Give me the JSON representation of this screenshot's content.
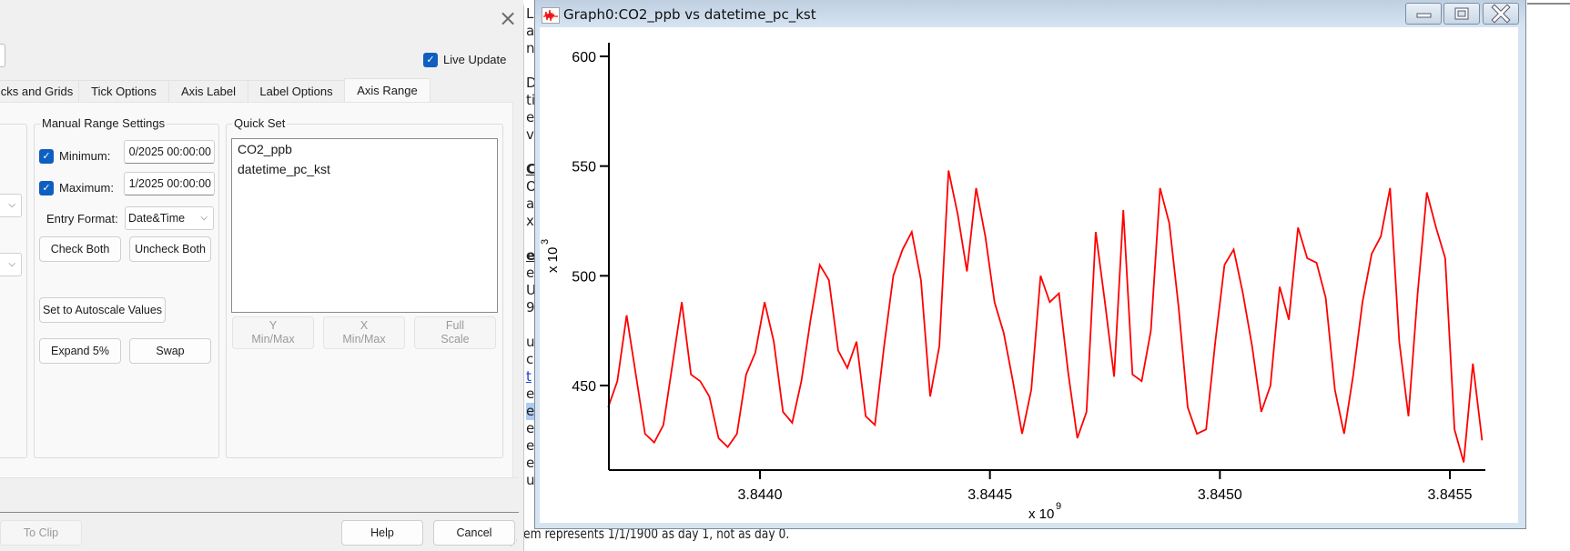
{
  "dialog": {
    "close_label": "×",
    "live_update_label": "Live Update",
    "live_update_checked": true,
    "tabs": [
      {
        "label": "cks and Grids",
        "active": false
      },
      {
        "label": "Tick Options",
        "active": false
      },
      {
        "label": "Axis Label",
        "active": false
      },
      {
        "label": "Label Options",
        "active": false
      },
      {
        "label": "Axis Range",
        "active": true
      }
    ],
    "manual_range": {
      "title": "Manual Range Settings",
      "minimum_label": "Minimum:",
      "minimum_value": "0/2025 00:00:00",
      "minimum_checked": true,
      "maximum_label": "Maximum:",
      "maximum_value": "1/2025 00:00:00",
      "maximum_checked": true,
      "entry_format_label": "Entry Format:",
      "entry_format_value": "Date&Time",
      "check_both": "Check Both",
      "uncheck_both": "Uncheck Both",
      "set_autoscale": "Set to Autoscale Values",
      "expand": "Expand 5%",
      "swap": "Swap"
    },
    "quick_set": {
      "title": "Quick Set",
      "items": [
        "CO2_ppb",
        "datetime_pc_kst"
      ],
      "y_minmax": [
        "Y",
        "Min/Max"
      ],
      "x_minmax": [
        "X",
        "Min/Max"
      ],
      "full_scale": [
        "Full",
        "Scale"
      ]
    },
    "footer": {
      "to_clip": "To Clip",
      "help": "Help",
      "cancel": "Cancel"
    }
  },
  "background_doc": {
    "letters": [
      "L",
      "a",
      "n",
      "",
      "D",
      "ti",
      "e",
      "v",
      "",
      "C",
      "O",
      "a",
      "xt",
      "",
      "e",
      "e",
      "U",
      "9",
      "",
      "u",
      "c",
      "t",
      "e",
      "e",
      "e",
      "e",
      "e",
      "u"
    ],
    "footer_text": "em represents 1/1/1900 as day 1, not as day 0."
  },
  "graph_window": {
    "title": "Graph0:CO2_ppb vs datetime_pc_kst",
    "minimize": "minimize",
    "maximize": "maximize",
    "close": "close"
  },
  "chart_data": {
    "type": "line",
    "title": "Graph0:CO2_ppb vs datetime_pc_kst",
    "xlabel": "x 10^9",
    "ylabel": "x 10^3",
    "x_multiplier_label": "x 10",
    "x_multiplier_exp": "9",
    "y_multiplier_label": "x 10",
    "y_multiplier_exp": "3",
    "series_color": "#ff0000",
    "xlim": [
      3.84367,
      3.84558
    ],
    "ylim": [
      412,
      605
    ],
    "x_ticks": [
      3.844,
      3.8445,
      3.845,
      3.8455
    ],
    "x_tick_labels": [
      "3.8440",
      "3.8445",
      "3.8450",
      "3.8455"
    ],
    "y_ticks": [
      450,
      500,
      550,
      600
    ],
    "y_tick_labels": [
      "450",
      "500",
      "550",
      "600"
    ],
    "grid": false,
    "legend": false,
    "series": [
      {
        "name": "CO2_ppb",
        "x": [
          3.84367,
          3.84369,
          3.84371,
          3.84373,
          3.84375,
          3.84377,
          3.84379,
          3.84381,
          3.84383,
          3.84385,
          3.84387,
          3.84389,
          3.84391,
          3.84393,
          3.84395,
          3.84397,
          3.84399,
          3.84401,
          3.84403,
          3.84405,
          3.84407,
          3.84409,
          3.84411,
          3.84413,
          3.84415,
          3.84417,
          3.84419,
          3.84421,
          3.84423,
          3.84425,
          3.84427,
          3.84429,
          3.84431,
          3.84433,
          3.84435,
          3.84437,
          3.84439,
          3.84441,
          3.84443,
          3.84445,
          3.84447,
          3.84449,
          3.84451,
          3.84453,
          3.84455,
          3.84457,
          3.84459,
          3.84461,
          3.84463,
          3.84465,
          3.84467,
          3.84469,
          3.84471,
          3.84473,
          3.84475,
          3.84477,
          3.84479,
          3.84481,
          3.84483,
          3.84485,
          3.84487,
          3.84489,
          3.84491,
          3.84493,
          3.84495,
          3.84497,
          3.84499,
          3.84501,
          3.84503,
          3.84505,
          3.84507,
          3.84509,
          3.84511,
          3.84513,
          3.84515,
          3.84517,
          3.84519,
          3.84521,
          3.84523,
          3.84525,
          3.84527,
          3.84529,
          3.84531,
          3.84533,
          3.84535,
          3.84537,
          3.84539,
          3.84541,
          3.84543,
          3.84545,
          3.84547,
          3.84549,
          3.84551,
          3.84553,
          3.84555,
          3.84557
        ],
        "y": [
          440,
          452,
          482,
          455,
          428,
          424,
          432,
          460,
          488,
          455,
          452,
          445,
          426,
          422,
          428,
          455,
          465,
          488,
          470,
          438,
          433,
          452,
          480,
          505,
          498,
          466,
          458,
          470,
          436,
          432,
          468,
          500,
          512,
          520,
          498,
          445,
          468,
          548,
          528,
          502,
          540,
          518,
          488,
          474,
          452,
          428,
          448,
          500,
          488,
          492,
          456,
          426,
          438,
          520,
          488,
          454,
          530,
          455,
          452,
          475,
          540,
          524,
          486,
          440,
          428,
          430,
          470,
          505,
          512,
          492,
          468,
          438,
          450,
          495,
          480,
          522,
          508,
          506,
          490,
          448,
          428,
          455,
          488,
          510,
          518,
          540,
          470,
          436,
          492,
          538,
          522,
          508,
          430,
          415,
          460,
          425
        ]
      }
    ]
  }
}
